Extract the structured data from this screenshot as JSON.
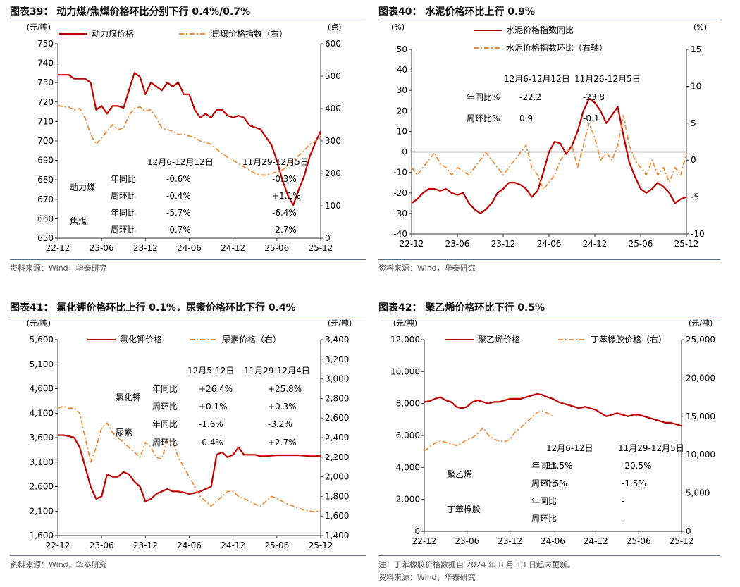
{
  "colors": {
    "red": "#c00000",
    "orange": "#ed8c3b",
    "axis": "#333333",
    "zero": "#808080",
    "rule": "#5a6f8f"
  },
  "panels": [
    {
      "title": "图表39： 动力煤/焦煤价格环比分别下行 0.4%/0.7%",
      "source": "资料来源：Wind，华泰研究",
      "note": "",
      "chart_data": {
        "type": "line",
        "left_unit": "(元/吨)",
        "right_unit": "(点)",
        "left_ticks": [
          "750",
          "740",
          "730",
          "720",
          "710",
          "700",
          "690",
          "680",
          "670",
          "660",
          "650"
        ],
        "right_ticks": [
          "600",
          "500",
          "400",
          "300",
          "200",
          "100",
          "0"
        ],
        "x_ticks": [
          "22-12",
          "23-06",
          "23-12",
          "24-06",
          "24-12",
          "25-06",
          "25-12"
        ],
        "ylim": [
          650,
          750
        ],
        "y2lim": [
          0,
          600
        ],
        "series": [
          {
            "name": "动力煤价格",
            "axis": "left",
            "style": "solid",
            "values": [
              734,
              734,
              734,
              732,
              732,
              732,
              730,
              716,
              718,
              714,
              718,
              718,
              717,
              726,
              735,
              733,
              724,
              730,
              728,
              726,
              730,
              728,
              730,
              724,
              724,
              716,
              712,
              714,
              712,
              716,
              716,
              713,
              712,
              713,
              712,
              708,
              707,
              706,
              702,
              698,
              690,
              680,
              672,
              667,
              675,
              682,
              692,
              699,
              705
            ]
          },
          {
            "name": "焦煤价格指数（右）",
            "axis": "right",
            "style": "dashdot",
            "values": [
              410,
              405,
              405,
              395,
              400,
              370,
              320,
              290,
              310,
              330,
              350,
              335,
              340,
              380,
              400,
              405,
              392,
              396,
              372,
              340,
              335,
              330,
              320,
              320,
              315,
              310,
              300,
              295,
              290,
              275,
              260,
              250,
              240,
              230,
              220,
              210,
              200,
              195,
              195,
              200,
              205,
              210,
              225,
              240,
              255,
              270,
              290,
              300,
              310
            ]
          }
        ],
        "table": {
          "headers": [
            "12月6-12月12日",
            "11月29-12月5日"
          ],
          "rows": [
            {
              "group": "动力煤",
              "label": "年同比",
              "v1": "-0.6%",
              "v2": "-0.3%"
            },
            {
              "group": "",
              "label": "周环比",
              "v1": "-0.4%",
              "v2": "+1.1%"
            },
            {
              "group": "焦煤",
              "label": "年同比",
              "v1": "-5.7%",
              "v2": "-6.4%"
            },
            {
              "group": "",
              "label": "周环比",
              "v1": "-0.7%",
              "v2": "-2.7%"
            }
          ]
        }
      }
    },
    {
      "title": "图表40： 水泥价格环比上行 0.9%",
      "source": "资料来源：Wind，华泰研究",
      "note": "",
      "chart_data": {
        "type": "line",
        "left_unit": "(%)",
        "right_unit": "(%)",
        "left_ticks": [
          "50",
          "40",
          "30",
          "20",
          "10",
          "0",
          "-10",
          "-20",
          "-30",
          "-40"
        ],
        "right_ticks": [
          "15",
          "10",
          "5",
          "0",
          "-5",
          "-10"
        ],
        "x_ticks": [
          "22-12",
          "23-06",
          "23-12",
          "24-06",
          "24-12",
          "25-06",
          "25-12"
        ],
        "ylim": [
          -40,
          50
        ],
        "y2lim": [
          -10,
          15
        ],
        "series": [
          {
            "name": "水泥价格指数同比",
            "axis": "left",
            "style": "solid",
            "values": [
              -25,
              -23,
              -20,
              -18,
              -18,
              -19,
              -18,
              -20,
              -21,
              -20,
              -25,
              -28,
              -30,
              -28,
              -25,
              -20,
              -18,
              -15,
              -15,
              -16,
              -18,
              -22,
              -19,
              -10,
              0,
              5,
              4,
              -1,
              3,
              10,
              20,
              26,
              24,
              20,
              14,
              18,
              22,
              8,
              -5,
              -12,
              -18,
              -20,
              -18,
              -15,
              -17,
              -20,
              -25,
              -23,
              -22
            ]
          },
          {
            "name": "水泥价格指数环比（右轴）",
            "axis": "right",
            "style": "dashdot",
            "values": [
              -1,
              -2,
              -1,
              0,
              1,
              -0.5,
              -1,
              -2,
              -1,
              -1.5,
              -2,
              -1,
              0,
              1,
              0,
              -1,
              -2,
              -1,
              0,
              1,
              2,
              -1,
              -2,
              -4,
              -3,
              -2,
              0,
              1,
              2,
              -1,
              2,
              5,
              3,
              0,
              1,
              0,
              2,
              6,
              2,
              0,
              -1,
              -2,
              0,
              -2,
              -1,
              -3,
              -1,
              -2,
              0.9
            ]
          }
        ],
        "table": {
          "headers": [
            "12月6-12月12日",
            "11月26-12月5日"
          ],
          "rows": [
            {
              "group": "",
              "label": "年同比%",
              "v1": "-22.2",
              "v2": "-23.8"
            },
            {
              "group": "",
              "label": "周环比%",
              "v1": "0.9",
              "v2": "-0.1"
            }
          ]
        }
      }
    },
    {
      "title": "图表41： 氯化钾价格环比上行 0.1%，尿素价格环比下行 0.4%",
      "source": "资料来源：Wind，华泰研究",
      "note": "",
      "chart_data": {
        "type": "line",
        "left_unit": "(元/吨)",
        "right_unit": "(元/吨)",
        "left_ticks": [
          "5,600",
          "5,100",
          "4,600",
          "4,100",
          "3,600",
          "3,100",
          "2,600",
          "2,100",
          "1,600"
        ],
        "right_ticks": [
          "3,400",
          "3,200",
          "3,000",
          "2,800",
          "2,600",
          "2,400",
          "2,200",
          "2,000",
          "1,800",
          "1,600",
          "1,400"
        ],
        "x_ticks": [
          "22-12",
          "23-06",
          "23-12",
          "24-06",
          "24-12",
          "25-06",
          "25-12"
        ],
        "ylim": [
          1600,
          5600
        ],
        "y2lim": [
          1400,
          3400
        ],
        "series": [
          {
            "name": "氯化钾价格",
            "axis": "left",
            "style": "solid",
            "values": [
              3650,
              3650,
              3630,
              3600,
              3400,
              3000,
              2600,
              2350,
              2400,
              2850,
              2800,
              2800,
              2900,
              2850,
              2700,
              2600,
              2300,
              2350,
              2450,
              2500,
              2550,
              2500,
              2500,
              2480,
              2450,
              2470,
              2500,
              2550,
              2600,
              3250,
              3300,
              3200,
              3250,
              3400,
              3250,
              3250,
              3250,
              3220,
              3220,
              3230,
              3240,
              3240,
              3240,
              3240,
              3240,
              3230,
              3220,
              3220,
              3230
            ]
          },
          {
            "name": "尿素价格（右）",
            "axis": "right",
            "style": "dashdot",
            "values": [
              2700,
              2720,
              2700,
              2700,
              2650,
              2400,
              2150,
              2300,
              2500,
              2550,
              2450,
              2400,
              2350,
              2300,
              2250,
              2200,
              2350,
              2300,
              2200,
              2180,
              2380,
              2350,
              2200,
              2100,
              2000,
              1900,
              1800,
              1750,
              1700,
              1750,
              1800,
              1850,
              1850,
              1800,
              1780,
              1750,
              1720,
              1700,
              1750,
              1800,
              1780,
              1750,
              1720,
              1700,
              1680,
              1660,
              1650,
              1640,
              1660
            ]
          }
        ],
        "table": {
          "headers": [
            "12月5-12日",
            "11月29-12月4日"
          ],
          "rows": [
            {
              "group": "氯化钾",
              "label": "年同比",
              "v1": "+26.4%",
              "v2": "+25.8%"
            },
            {
              "group": "",
              "label": "周环比",
              "v1": "+0.1%",
              "v2": "+0.3%"
            },
            {
              "group": "尿素",
              "label": "年同比",
              "v1": "-1.6%",
              "v2": "-3.2%"
            },
            {
              "group": "",
              "label": "周环比",
              "v1": "-0.4%",
              "v2": "+2.7%"
            }
          ]
        }
      }
    },
    {
      "title": "图表42： 聚乙烯价格环比下行 0.5%",
      "source": "资料来源：Wind，华泰研究",
      "note": "注：丁苯橡胶价格数据自 2024 年 8 月 13 日起未更新。",
      "chart_data": {
        "type": "line",
        "left_unit": "(元/吨)",
        "right_unit": "(元/吨)",
        "left_ticks": [
          "12,000",
          "10,000",
          "8,000",
          "6,000",
          "4,000",
          "2,000",
          "0"
        ],
        "right_ticks": [
          "25,000",
          "20,000",
          "15,000",
          "10,000",
          "5,000",
          "0"
        ],
        "x_ticks": [
          "22-12",
          "23-06",
          "23-12",
          "24-06",
          "24-12",
          "25-06",
          "25-12"
        ],
        "ylim": [
          0,
          12000
        ],
        "y2lim": [
          0,
          25000
        ],
        "series": [
          {
            "name": "聚乙烯价格",
            "axis": "left",
            "style": "solid",
            "values": [
              8100,
              8150,
              8300,
              8400,
              8200,
              8100,
              7800,
              7700,
              7800,
              8100,
              8200,
              8100,
              8000,
              8100,
              8100,
              8200,
              8300,
              8300,
              8300,
              8400,
              8500,
              8600,
              8550,
              8400,
              8300,
              8100,
              8000,
              7900,
              7800,
              7700,
              7800,
              7700,
              7600,
              7400,
              7200,
              7300,
              7400,
              7300,
              7200,
              7300,
              7300,
              7200,
              7100,
              7000,
              6900,
              6800,
              6800,
              6700,
              6600
            ]
          },
          {
            "name": "丁苯橡胶价格（右）",
            "axis": "right",
            "style": "dashdot",
            "values": [
              10500,
              11000,
              11500,
              11800,
              11600,
              11400,
              11200,
              11500,
              12000,
              12200,
              12800,
              13500,
              12500,
              12000,
              11800,
              11700,
              12000,
              13000,
              13500,
              14200,
              14800,
              15500,
              15700,
              15400,
              15000
            ]
          }
        ],
        "table": {
          "headers": [
            "12月6-12日",
            "11月29-12月5日"
          ],
          "rows": [
            {
              "group": "聚乙烯",
              "label": "年同比",
              "v1": "-21.5%",
              "v2": "-20.5%"
            },
            {
              "group": "",
              "label": "周环比",
              "v1": "-0.5%",
              "v2": "-1.5%"
            },
            {
              "group": "丁苯橡胶",
              "label": "年同比",
              "v1": "-",
              "v2": "-"
            },
            {
              "group": "",
              "label": "周环比",
              "v1": "-",
              "v2": "-"
            }
          ]
        }
      }
    }
  ]
}
